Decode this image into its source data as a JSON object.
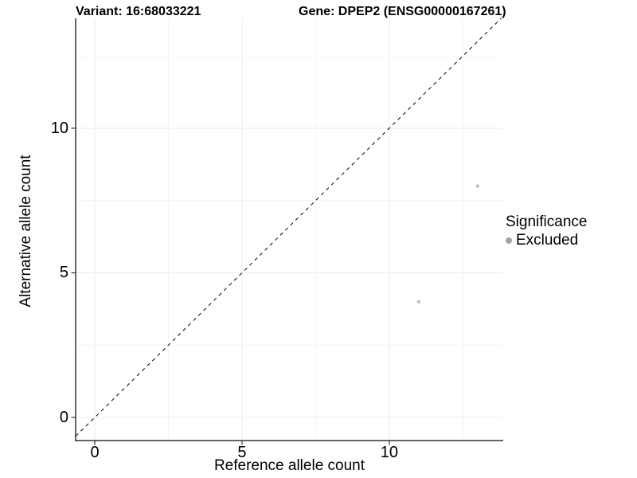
{
  "chart_data": {
    "type": "scatter",
    "title_left": "Variant: 16:68033221",
    "title_right": "Gene: DPEP2 (ENSG00000167261)",
    "xlabel": "Reference allele count",
    "ylabel": "Alternative allele count",
    "xlim": [
      -0.65,
      13.87
    ],
    "ylim": [
      -0.8,
      13.8
    ],
    "x_ticks": [
      0,
      5,
      10
    ],
    "y_ticks": [
      0,
      5,
      10
    ],
    "x_minor_ticks": [
      2.5,
      7.5,
      12.5
    ],
    "y_minor_ticks": [
      2.5,
      7.5,
      12.5
    ],
    "grid": true,
    "reference_line": {
      "style": "dashed",
      "slope": 1,
      "intercept": 0,
      "color": "#000000"
    },
    "series": [
      {
        "name": "Excluded",
        "color": "#c3c3c3",
        "points": [
          [
            11,
            4
          ],
          [
            13,
            8
          ]
        ]
      }
    ],
    "legend": {
      "title": "Significance",
      "position": "right",
      "items": [
        {
          "label": "Excluded",
          "marker": "circle",
          "color": "#a3a3a3"
        }
      ]
    },
    "colors": {
      "grid_major": "#ebebeb",
      "grid_minor": "#f4f4f4",
      "axis": "#333333",
      "point": "#c3c3c3",
      "text": "#000000"
    }
  }
}
